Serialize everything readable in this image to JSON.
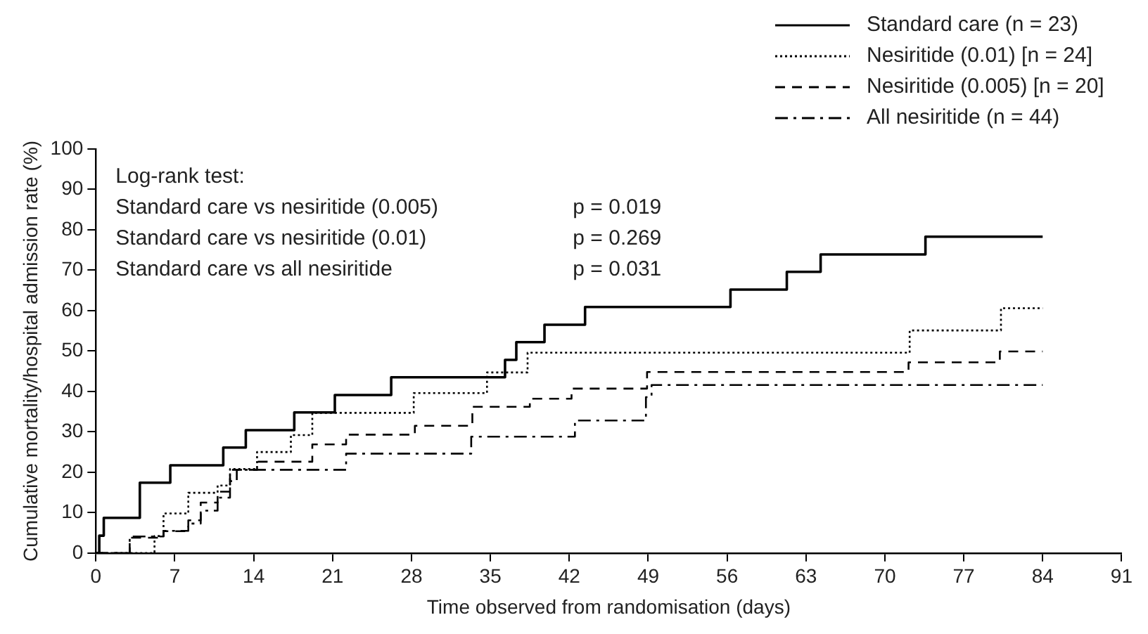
{
  "chart_data": {
    "type": "step",
    "xlabel": "Time observed from randomisation (days)",
    "ylabel": "Cumulative mortality/hospital admission rate (%)",
    "xlim": [
      0,
      91
    ],
    "xticks": [
      0,
      7,
      14,
      21,
      28,
      35,
      42,
      49,
      56,
      63,
      70,
      77,
      84,
      91
    ],
    "ylim": [
      0,
      100
    ],
    "yticks": [
      0,
      10,
      20,
      30,
      40,
      50,
      60,
      70,
      80,
      90,
      100
    ],
    "grid": false,
    "legend": "top right",
    "marker": "none",
    "annotations": [
      "Log-rank test:",
      "Standard care vs nesiritide (0.005)",
      "p = 0.019",
      "Standard care vs nesiritide (0.01)",
      "p = 0.269",
      "Standard care vs all nesiritide",
      "p = 0.031"
    ],
    "series": [
      {
        "name": "Standard care (n = 23)",
        "color": "#000000",
        "line_style": "solid",
        "x": [
          0,
          0.3,
          0.7,
          3.9,
          6.6,
          11.3,
          13.3,
          17.6,
          21.2,
          26.2,
          36.3,
          37.3,
          39.8,
          43.4,
          56.3,
          61.3,
          64.3,
          73.6,
          84
        ],
        "values": [
          0,
          4.3,
          8.7,
          17.4,
          21.7,
          26.1,
          30.4,
          34.8,
          39.1,
          43.5,
          47.8,
          52.2,
          56.5,
          60.9,
          65.2,
          69.6,
          73.9,
          78.3,
          78.3
        ]
      },
      {
        "name": "Nesiritide (0.01) [n = 24]",
        "color": "#000000",
        "line_style": "dotted",
        "x": [
          0,
          5.2,
          6.0,
          8.2,
          10.8,
          11.9,
          14.3,
          17.3,
          19.2,
          28.2,
          34.7,
          38.3,
          72.2,
          80.3,
          84
        ],
        "values": [
          0,
          4.2,
          9.8,
          14.9,
          16.7,
          20.8,
          25,
          29.2,
          34.7,
          39.6,
          44.7,
          49.6,
          55.1,
          60.6,
          60.6
        ]
      },
      {
        "name": "Nesiritide (0.005) [n = 20]",
        "color": "#000000",
        "line_style": "dashed",
        "x": [
          0,
          3.0,
          6.0,
          8.2,
          9.3,
          10.8,
          11.9,
          14.3,
          19.2,
          22.2,
          28.3,
          33.4,
          38.5,
          42.2,
          48.9,
          72.1,
          80.2,
          84
        ],
        "values": [
          0,
          3.8,
          5.4,
          8.1,
          12.5,
          15.2,
          20.6,
          22.6,
          26.9,
          29.3,
          31.5,
          36.2,
          38.2,
          40.7,
          44.8,
          47.2,
          49.9,
          49.9
        ]
      },
      {
        "name": "All nesiritide (n = 44)",
        "color": "#000000",
        "line_style": "dashdot",
        "x": [
          0,
          3.0,
          6.0,
          8.2,
          9.3,
          10.8,
          11.9,
          12.5,
          22.2,
          33.3,
          42.5,
          48.8,
          49.3,
          84
        ],
        "values": [
          0,
          4.1,
          5.5,
          7.3,
          10.5,
          13.7,
          17.8,
          20.6,
          24.6,
          28.8,
          32.8,
          38.6,
          41.6,
          41.6
        ]
      }
    ]
  }
}
